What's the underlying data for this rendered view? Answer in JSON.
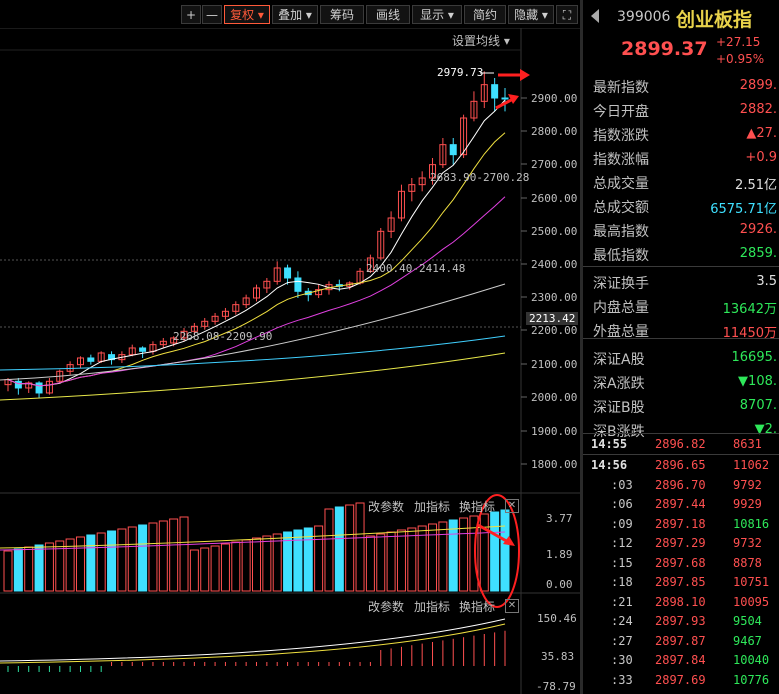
{
  "toolbar": {
    "plus": "+",
    "minus": "—",
    "fuquan": "复权",
    "diejia": "叠加",
    "chouma": "筹码",
    "huaxian": "画线",
    "xianshi": "显示",
    "jianyue": "简约",
    "yincang": "隐藏",
    "expand": "⛶"
  },
  "main_chart": {
    "settings_label": "设置均线",
    "peak_label": "2979.73",
    "range1": "2683.90-2700.28",
    "range2": "2400.40-2414.48",
    "range3": "2268.08-2209.90",
    "price_axis": [
      "2900.00",
      "2800.00",
      "2700.00",
      "2600.00",
      "2500.00",
      "2400.00",
      "2300.00",
      "2200.00",
      "2100.00",
      "2000.00",
      "1900.00",
      "1800.00"
    ],
    "current_price_tag": "2213.42"
  },
  "volume_panel": {
    "gai_canshu": "改参数",
    "jia_zhibiao": "加指标",
    "huan_zhibiao": "换指标",
    "axis": [
      "3.77",
      "1.89",
      "0.00"
    ]
  },
  "macd_panel": {
    "gai_canshu": "改参数",
    "jia_zhibiao": "加指标",
    "huan_zhibiao": "换指标",
    "axis": [
      "150.46",
      "35.83",
      "-78.79"
    ]
  },
  "quote": {
    "code": "399006",
    "name": "创业板指",
    "price": "2899.37",
    "change": "+27.15",
    "change_pct": "+0.95%",
    "stats": [
      {
        "label": "最新指数",
        "value": "2899.",
        "color": "red"
      },
      {
        "label": "今日开盘",
        "value": "2882.",
        "color": "red"
      },
      {
        "label": "指数涨跌",
        "value": "▲27.",
        "color": "red"
      },
      {
        "label": "指数涨幅",
        "value": "+0.9",
        "color": "red"
      },
      {
        "label": "总成交量",
        "value": "2.51亿",
        "color": "white"
      },
      {
        "label": "总成交额",
        "value": "6575.71亿",
        "color": "cyan"
      },
      {
        "label": "最高指数",
        "value": "2926.",
        "color": "red"
      },
      {
        "label": "最低指数",
        "value": "2859.",
        "color": "green"
      },
      {
        "label": "深证换手",
        "value": "3.5",
        "color": "white"
      },
      {
        "label": "内盘总量",
        "value": "13642万",
        "color": "green"
      },
      {
        "label": "外盘总量",
        "value": "11450万",
        "color": "red"
      },
      {
        "label": "深证A股",
        "value": "16695.",
        "color": "green"
      },
      {
        "label": "深A涨跌",
        "value": "▼108.",
        "color": "green"
      },
      {
        "label": "深证B股",
        "value": "8707.",
        "color": "green"
      },
      {
        "label": "深B涨跌",
        "value": "▼2.",
        "color": "green"
      }
    ],
    "ticks": [
      {
        "time": "14:55",
        "price": "2896.82",
        "vol": "8631",
        "vc": "red"
      },
      {
        "time": "14:56",
        "price": "2896.65",
        "vol": "11062",
        "vc": "red"
      },
      {
        "time": ":03",
        "price": "2896.70",
        "vol": "9792",
        "vc": "red"
      },
      {
        "time": ":06",
        "price": "2897.44",
        "vol": "9929",
        "vc": "red"
      },
      {
        "time": ":09",
        "price": "2897.18",
        "vol": "10816",
        "vc": "green"
      },
      {
        "time": ":12",
        "price": "2897.29",
        "vol": "9732",
        "vc": "red"
      },
      {
        "time": ":15",
        "price": "2897.68",
        "vol": "8878",
        "vc": "red"
      },
      {
        "time": ":18",
        "price": "2897.85",
        "vol": "10751",
        "vc": "red"
      },
      {
        "time": ":21",
        "price": "2898.10",
        "vol": "10095",
        "vc": "red"
      },
      {
        "time": ":24",
        "price": "2897.93",
        "vol": "9504",
        "vc": "green"
      },
      {
        "time": ":27",
        "price": "2897.87",
        "vol": "9467",
        "vc": "green"
      },
      {
        "time": ":30",
        "price": "2897.84",
        "vol": "10040",
        "vc": "green"
      },
      {
        "time": ":33",
        "price": "2897.69",
        "vol": "10776",
        "vc": "green"
      }
    ]
  },
  "colors": {
    "up": "#ff5050",
    "down": "#3fe0ff",
    "ma5": "#ffffff",
    "ma10": "#f0e040",
    "ma20": "#e040e0",
    "ma60": "#40d0ff",
    "annotation": "#ff2020"
  }
}
